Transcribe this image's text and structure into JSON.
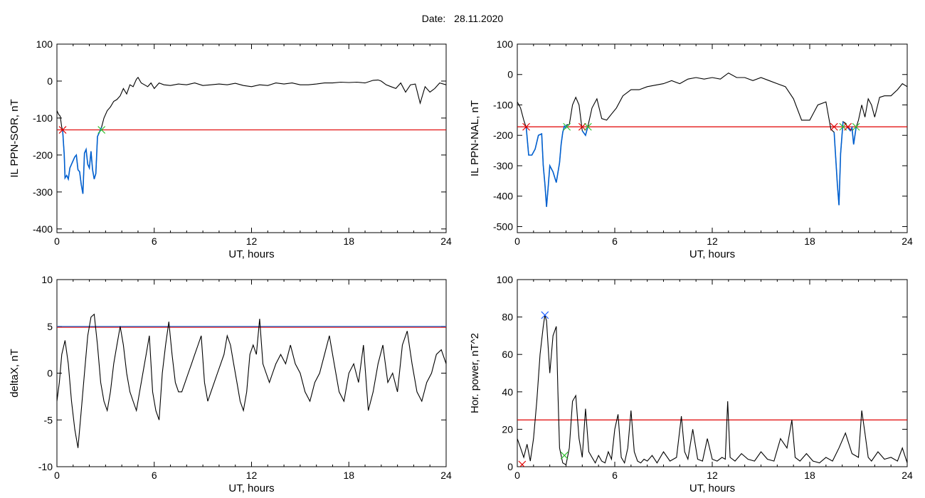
{
  "header": {
    "date_label": "Date:",
    "date_value": "28.11.2020"
  },
  "colors": {
    "trace": "#000000",
    "threshold": "#e00000",
    "highlight": "#0060d0",
    "onset_marker": "#e00000",
    "end_marker": "#30c030",
    "peak_marker": "#2060ff",
    "extra_threshold": "#2f7fe0"
  },
  "chart_data": [
    {
      "id": "il-sor",
      "type": "line",
      "title": "",
      "xlabel": "UT, hours",
      "ylabel": "IL PPN-SOR, nT",
      "xlim": [
        0,
        24
      ],
      "ylim": [
        -410,
        100
      ],
      "xticks": [
        0,
        6,
        12,
        18,
        24
      ],
      "xtick_labels": [
        "0",
        "6",
        "12",
        "18",
        "24"
      ],
      "yticks": [
        -400,
        -300,
        -200,
        -100,
        0,
        100
      ],
      "ytick_labels": [
        "-400",
        "-300",
        "-200",
        "-100",
        "0",
        "100"
      ],
      "threshold": -132,
      "highlight_ranges": [
        [
          0.35,
          2.75
        ]
      ],
      "series": [
        {
          "x": [
            0,
            0.1,
            0.2,
            0.3,
            0.35,
            0.45,
            0.5,
            0.6,
            0.7,
            0.8,
            0.9,
            1.0,
            1.1,
            1.2,
            1.3,
            1.4,
            1.5,
            1.6,
            1.7,
            1.8,
            1.9,
            2.0,
            2.1,
            2.2,
            2.3,
            2.4,
            2.5,
            2.6,
            2.7,
            2.75,
            2.9,
            3.1,
            3.3,
            3.5,
            3.7,
            3.9,
            4.1,
            4.3,
            4.5,
            4.7,
            4.9,
            5.0,
            5.2,
            5.4,
            5.6,
            5.8,
            6.0,
            6.3,
            6.6,
            7.0,
            7.5,
            8.0,
            8.5,
            9.0,
            9.5,
            10.0,
            10.5,
            11.0,
            11.5,
            12.0,
            12.5,
            13.0,
            13.5,
            14.0,
            14.5,
            15.0,
            15.5,
            16.0,
            16.5,
            17.0,
            17.5,
            18.0,
            18.5,
            19.0,
            19.5,
            19.8,
            20.0,
            20.3,
            20.6,
            20.9,
            21.2,
            21.5,
            21.8,
            22.1,
            22.4,
            22.7,
            23.0,
            23.3,
            23.6,
            24.0
          ],
          "values": [
            -80,
            -90,
            -95,
            -125,
            -132,
            -200,
            -262,
            -255,
            -265,
            -235,
            -225,
            -215,
            -205,
            -200,
            -240,
            -245,
            -280,
            -305,
            -195,
            -185,
            -225,
            -235,
            -190,
            -240,
            -265,
            -250,
            -150,
            -140,
            -130,
            -125,
            -100,
            -80,
            -70,
            -55,
            -50,
            -40,
            -20,
            -35,
            -10,
            -15,
            5,
            10,
            -5,
            -10,
            -15,
            -5,
            -20,
            -5,
            -10,
            -12,
            -8,
            -10,
            -5,
            -12,
            -10,
            -8,
            -10,
            -6,
            -12,
            -15,
            -10,
            -12,
            -5,
            -8,
            -5,
            -10,
            -10,
            -8,
            -5,
            -5,
            -3,
            -4,
            -3,
            -5,
            2,
            3,
            0,
            -10,
            -15,
            -20,
            -5,
            -30,
            -10,
            -8,
            -60,
            -15,
            -30,
            -20,
            -5,
            -10
          ]
        }
      ]
    },
    {
      "id": "il-nal",
      "type": "line",
      "title": "",
      "xlabel": "UT, hours",
      "ylabel": "IL PPN-NAL, nT",
      "xlim": [
        0,
        24
      ],
      "ylim": [
        -520,
        100
      ],
      "xticks": [
        0,
        6,
        12,
        18,
        24
      ],
      "xtick_labels": [
        "0",
        "6",
        "12",
        "18",
        "24"
      ],
      "yticks": [
        -500,
        -400,
        -300,
        -200,
        -100,
        0,
        100
      ],
      "ytick_labels": [
        "-500",
        "-400",
        "-300",
        "-200",
        "-100",
        "0",
        "100"
      ],
      "threshold": -172,
      "highlight_ranges": [
        [
          0.55,
          3.05
        ],
        [
          4.0,
          4.35
        ],
        [
          19.5,
          20.05
        ],
        [
          20.35,
          20.85
        ]
      ],
      "series": [
        {
          "x": [
            0,
            0.2,
            0.4,
            0.55,
            0.7,
            0.9,
            1.1,
            1.3,
            1.5,
            1.6,
            1.7,
            1.8,
            1.9,
            2.0,
            2.2,
            2.4,
            2.6,
            2.7,
            2.8,
            2.9,
            3.0,
            3.05,
            3.2,
            3.4,
            3.6,
            3.8,
            4.0,
            4.2,
            4.35,
            4.6,
            4.9,
            5.2,
            5.5,
            5.8,
            6.1,
            6.5,
            7.0,
            7.5,
            8.0,
            8.5,
            9.0,
            9.5,
            10.0,
            10.5,
            11.0,
            11.5,
            12.0,
            12.5,
            13.0,
            13.5,
            14.0,
            14.5,
            15.0,
            15.5,
            16.0,
            16.5,
            17.0,
            17.5,
            18.0,
            18.5,
            19.0,
            19.3,
            19.5,
            19.7,
            19.8,
            19.9,
            20.05,
            20.2,
            20.35,
            20.5,
            20.6,
            20.7,
            20.85,
            21.0,
            21.2,
            21.4,
            21.6,
            21.8,
            22.0,
            22.3,
            22.6,
            23.0,
            23.4,
            23.7,
            24.0
          ],
          "values": [
            -90,
            -110,
            -150,
            -175,
            -265,
            -265,
            -245,
            -200,
            -195,
            -300,
            -360,
            -435,
            -370,
            -300,
            -320,
            -355,
            -290,
            -230,
            -190,
            -170,
            -175,
            -165,
            -165,
            -100,
            -75,
            -100,
            -185,
            -200,
            -170,
            -110,
            -80,
            -145,
            -150,
            -130,
            -110,
            -70,
            -50,
            -50,
            -40,
            -35,
            -30,
            -20,
            -30,
            -15,
            -10,
            -15,
            -10,
            -15,
            5,
            -10,
            -10,
            -20,
            -10,
            -20,
            -30,
            -40,
            -80,
            -150,
            -150,
            -100,
            -90,
            -180,
            -190,
            -360,
            -430,
            -260,
            -155,
            -160,
            -175,
            -185,
            -175,
            -230,
            -175,
            -150,
            -100,
            -140,
            -80,
            -100,
            -140,
            -75,
            -70,
            -70,
            -50,
            -30,
            -40
          ]
        }
      ]
    },
    {
      "id": "deltax",
      "type": "line",
      "title": "",
      "xlabel": "UT, hours",
      "ylabel": "deltaX, nT",
      "xlim": [
        0,
        24
      ],
      "ylim": [
        -10,
        10
      ],
      "xticks": [
        0,
        6,
        12,
        18,
        24
      ],
      "xtick_labels": [
        "0",
        "6",
        "12",
        "18",
        "24"
      ],
      "yticks": [
        -10,
        -5,
        0,
        5,
        10
      ],
      "ytick_labels": [
        "-10",
        "-5",
        "0",
        "5",
        "10"
      ],
      "threshold": 4.9,
      "threshold_secondary": 5.0,
      "highlight_ranges": [],
      "series": [
        {
          "x": [
            0,
            0.15,
            0.3,
            0.5,
            0.7,
            0.9,
            1.1,
            1.3,
            1.5,
            1.7,
            1.9,
            2.1,
            2.3,
            2.5,
            2.7,
            2.9,
            3.1,
            3.3,
            3.5,
            3.7,
            3.9,
            4.1,
            4.3,
            4.5,
            4.7,
            4.9,
            5.1,
            5.3,
            5.5,
            5.7,
            5.9,
            6.1,
            6.3,
            6.5,
            6.7,
            6.9,
            7.1,
            7.3,
            7.5,
            7.7,
            7.9,
            8.1,
            8.3,
            8.5,
            8.7,
            8.9,
            9.1,
            9.3,
            9.5,
            9.7,
            9.9,
            10.1,
            10.3,
            10.5,
            10.7,
            10.9,
            11.1,
            11.3,
            11.5,
            11.7,
            11.9,
            12.1,
            12.3,
            12.5,
            12.7,
            12.9,
            13.1,
            13.3,
            13.5,
            13.8,
            14.1,
            14.4,
            14.7,
            15.0,
            15.3,
            15.6,
            15.9,
            16.2,
            16.5,
            16.8,
            17.1,
            17.4,
            17.7,
            18.0,
            18.3,
            18.6,
            18.9,
            19.2,
            19.5,
            19.8,
            20.1,
            20.4,
            20.7,
            21.0,
            21.3,
            21.6,
            21.9,
            22.2,
            22.5,
            22.8,
            23.1,
            23.4,
            23.7,
            24.0
          ],
          "values": [
            -3,
            -1,
            2,
            3.5,
            1,
            -3,
            -6,
            -8,
            -4,
            0,
            4,
            6,
            6.3,
            3,
            -1,
            -3,
            -4,
            -2,
            1,
            3,
            5,
            3,
            0,
            -2,
            -3,
            -4,
            -2,
            0,
            2,
            4,
            -2,
            -4,
            -5,
            0,
            3,
            5.5,
            2,
            -1,
            -2,
            -2,
            -1,
            0,
            1,
            2,
            3,
            4,
            -1,
            -3,
            -2,
            -1,
            0,
            1,
            2,
            4,
            3,
            1,
            -1,
            -3,
            -4,
            -2,
            2,
            3,
            2,
            5.8,
            1,
            0,
            -1,
            0,
            1,
            2,
            1,
            3,
            1,
            0,
            -2,
            -3,
            -1,
            0,
            2,
            4,
            1,
            -2,
            -3,
            0,
            1,
            -1,
            3,
            -4,
            -2,
            1,
            3,
            -1,
            0,
            -2,
            3,
            4.5,
            1,
            -2,
            -3,
            -1,
            0,
            2,
            2.5,
            1
          ]
        }
      ]
    },
    {
      "id": "hor-power",
      "type": "line",
      "title": "",
      "xlabel": "UT, hours",
      "ylabel": "Hor. power, nT^2",
      "xlim": [
        0,
        24
      ],
      "ylim": [
        0,
        100
      ],
      "xticks": [
        0,
        6,
        12,
        18,
        24
      ],
      "xtick_labels": [
        "0",
        "6",
        "12",
        "18",
        "24"
      ],
      "yticks": [
        0,
        20,
        40,
        60,
        80,
        100
      ],
      "ytick_labels": [
        "0",
        "20",
        "40",
        "60",
        "80",
        "100"
      ],
      "threshold": 25,
      "highlight_ranges": [],
      "peak_marker": {
        "x": 1.7,
        "y": 81
      },
      "onset_marker": {
        "x": 0.3,
        "y": 0
      },
      "end_marker": {
        "x": 2.9,
        "y": 6
      },
      "series": [
        {
          "x": [
            0,
            0.2,
            0.4,
            0.6,
            0.8,
            1.0,
            1.2,
            1.4,
            1.6,
            1.7,
            1.8,
            2.0,
            2.2,
            2.4,
            2.5,
            2.6,
            2.8,
            3.0,
            3.2,
            3.4,
            3.6,
            3.8,
            4.0,
            4.2,
            4.4,
            4.6,
            4.8,
            5.0,
            5.2,
            5.4,
            5.6,
            5.8,
            6.0,
            6.2,
            6.4,
            6.6,
            6.8,
            7.0,
            7.2,
            7.4,
            7.6,
            7.8,
            8.0,
            8.3,
            8.6,
            9.0,
            9.4,
            9.8,
            10.1,
            10.3,
            10.5,
            10.8,
            11.1,
            11.4,
            11.7,
            12.0,
            12.3,
            12.6,
            12.8,
            12.95,
            13.1,
            13.4,
            13.8,
            14.2,
            14.6,
            15.0,
            15.4,
            15.8,
            16.2,
            16.6,
            16.9,
            17.1,
            17.4,
            17.8,
            18.2,
            18.6,
            19.0,
            19.4,
            19.8,
            20.2,
            20.6,
            21.0,
            21.2,
            21.4,
            21.6,
            21.8,
            22.2,
            22.6,
            23.0,
            23.4,
            23.7,
            24.0
          ],
          "values": [
            15,
            10,
            5,
            12,
            3,
            15,
            35,
            60,
            75,
            81,
            78,
            50,
            70,
            75,
            40,
            10,
            2,
            1,
            10,
            35,
            38,
            15,
            5,
            31,
            8,
            5,
            2,
            6,
            3,
            2,
            8,
            4,
            20,
            28,
            5,
            2,
            10,
            30,
            8,
            3,
            2,
            4,
            3,
            6,
            2,
            8,
            3,
            5,
            27,
            8,
            4,
            20,
            4,
            3,
            15,
            4,
            3,
            5,
            4,
            35,
            5,
            3,
            7,
            4,
            3,
            8,
            4,
            3,
            15,
            10,
            25,
            5,
            3,
            7,
            3,
            2,
            5,
            3,
            10,
            18,
            7,
            5,
            30,
            18,
            5,
            3,
            8,
            4,
            5,
            3,
            10,
            2
          ]
        }
      ]
    }
  ]
}
